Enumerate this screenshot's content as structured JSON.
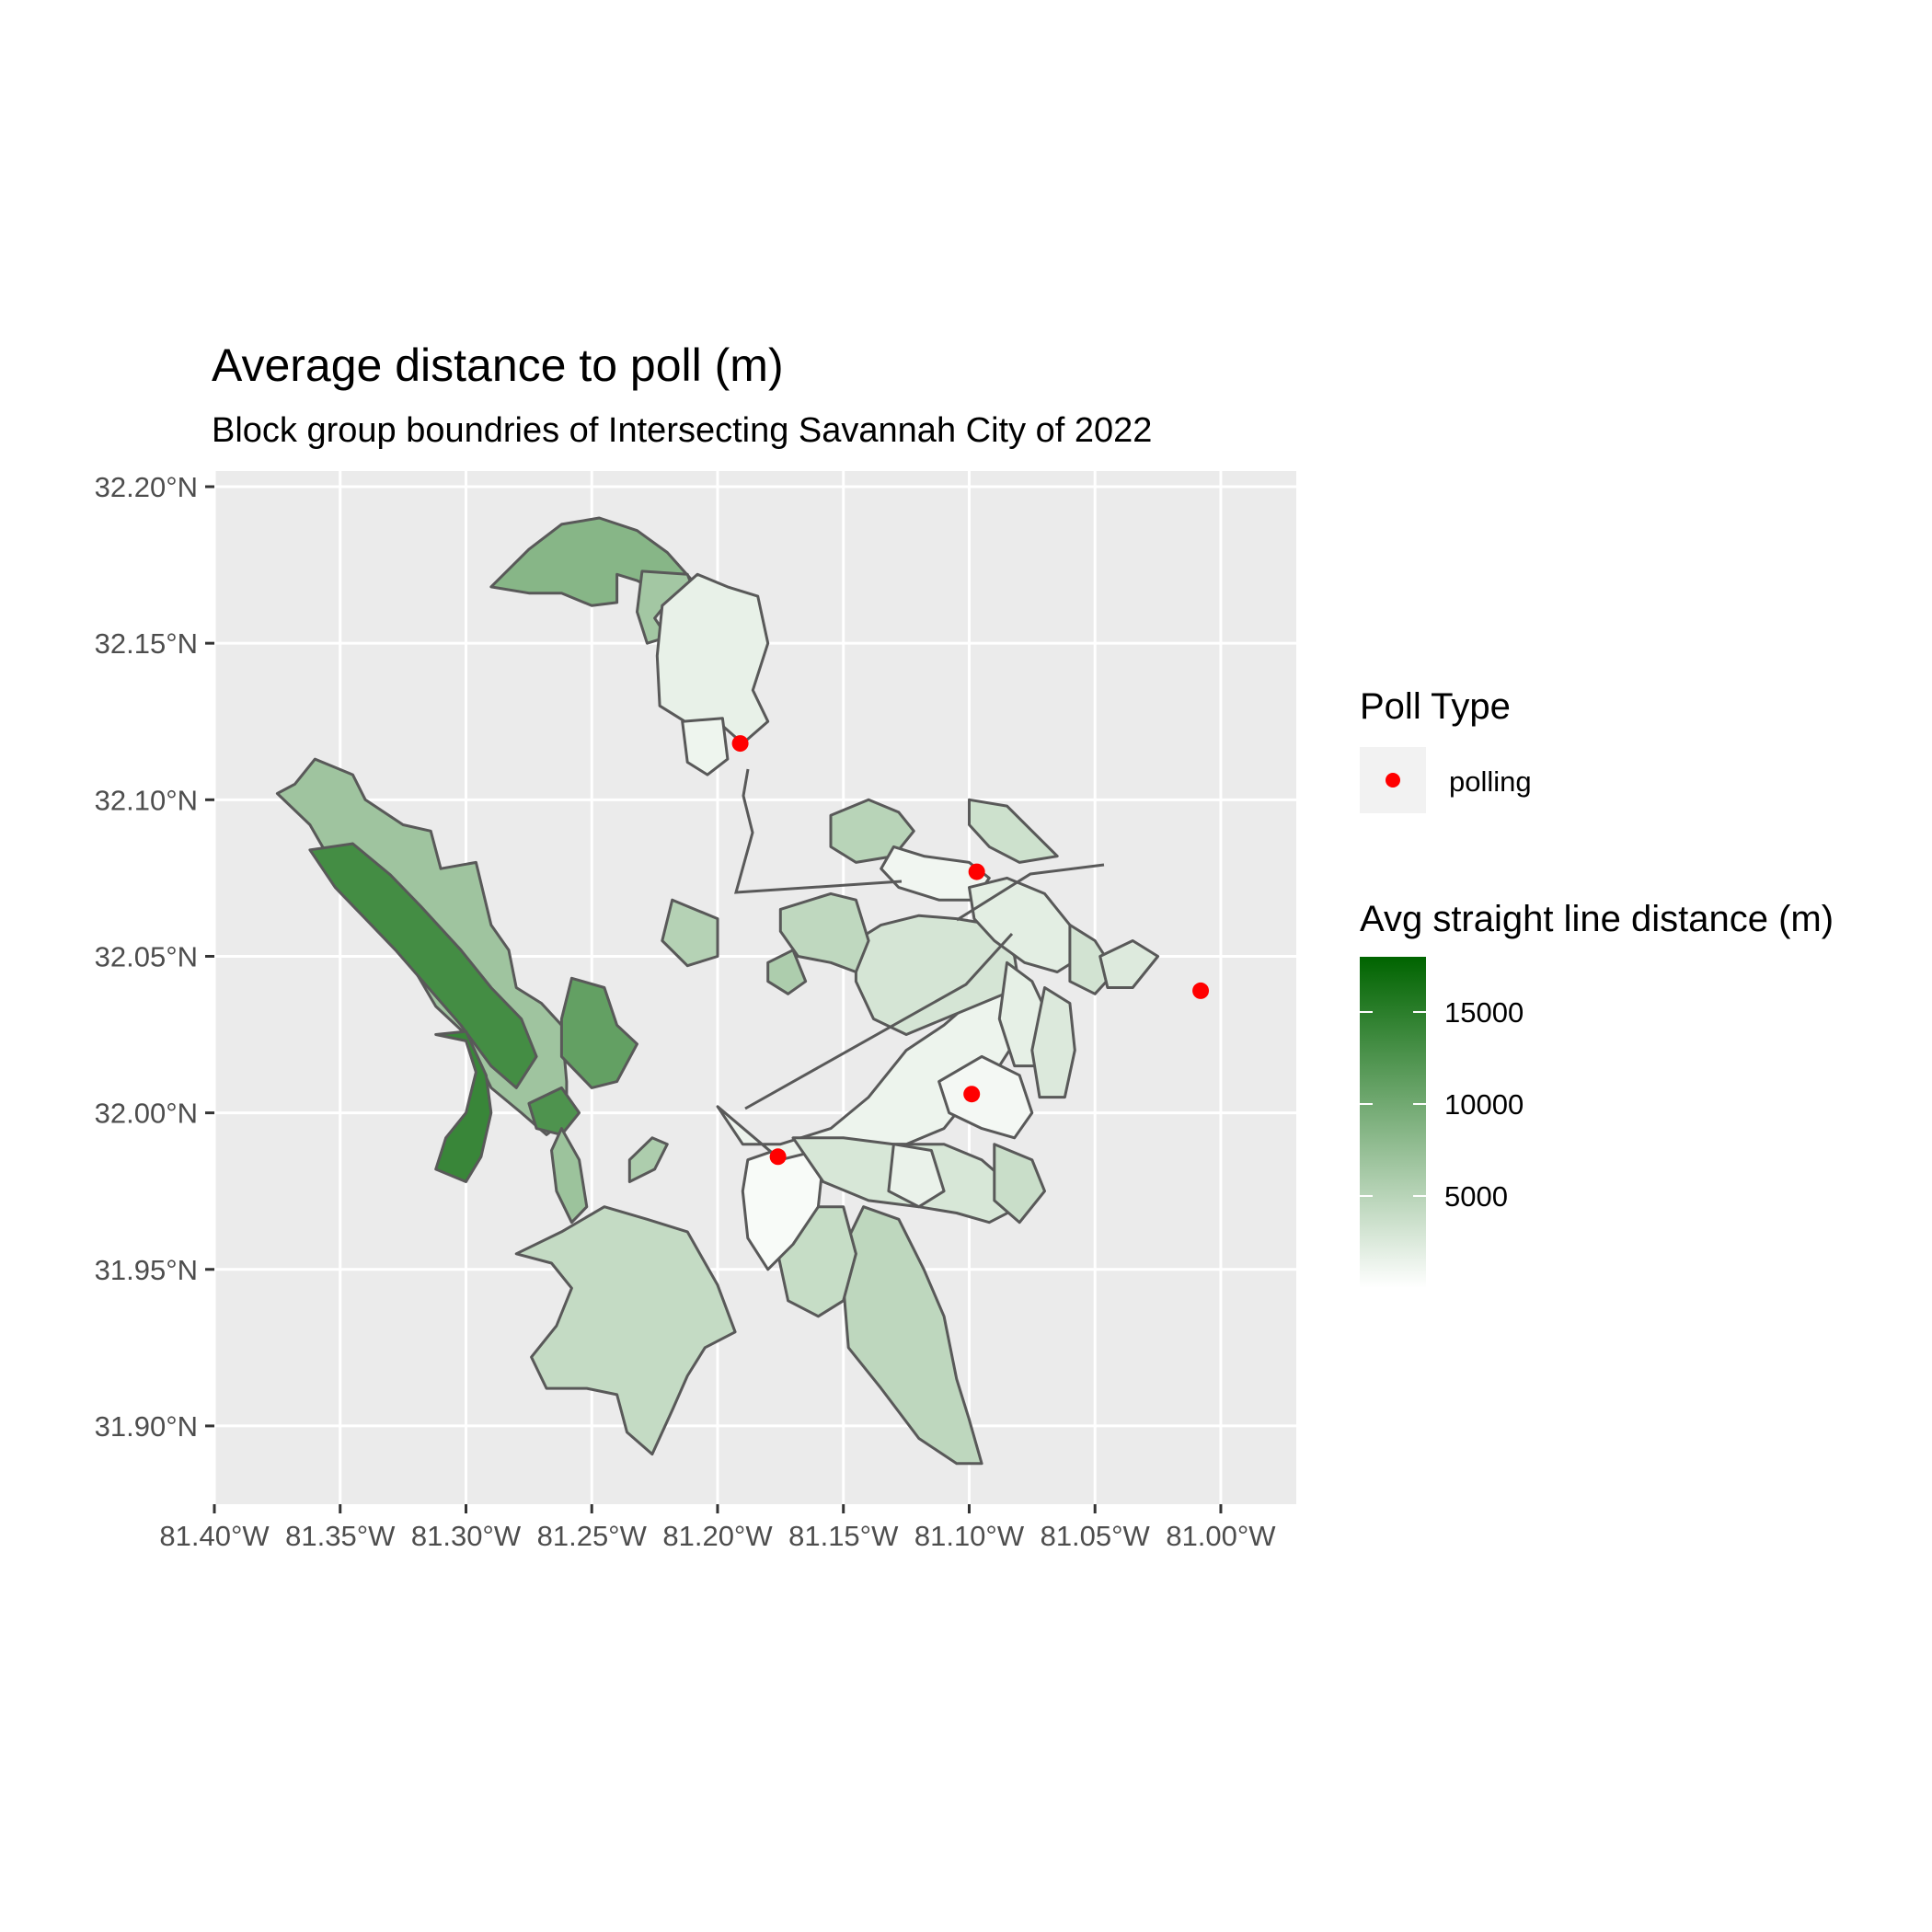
{
  "title": "Average distance to poll (m)",
  "subtitle": "Block group boundries of Intersecting Savannah City of 2022",
  "map": {
    "lon_range": [
      -81.4,
      -80.97
    ],
    "lat_range": [
      31.875,
      32.205
    ],
    "lon_ticks": [
      -81.4,
      -81.35,
      -81.3,
      -81.25,
      -81.2,
      -81.15,
      -81.1,
      -81.05,
      -81.0
    ],
    "lon_labels": [
      "81.40°W",
      "81.35°W",
      "81.30°W",
      "81.25°W",
      "81.20°W",
      "81.15°W",
      "81.10°W",
      "81.05°W",
      "81.00°W"
    ],
    "lat_ticks": [
      32.2,
      32.15,
      32.1,
      32.05,
      32.0,
      31.95,
      31.9
    ],
    "lat_labels": [
      "32.20°N",
      "32.15°N",
      "32.10°N",
      "32.05°N",
      "32.00°N",
      "31.95°N",
      "31.90°N"
    ],
    "panel_color": "#ebebeb",
    "grid_color": "#ffffff",
    "border_color": "#595959"
  },
  "colors": {
    "low": "#ffffff",
    "high": "#006400",
    "poll": "#ff0000"
  },
  "legend_poll": {
    "title": "Poll Type",
    "item": "polling"
  },
  "legend_distance": {
    "title": "Avg straight line distance (m)",
    "min": 0,
    "max": 18000,
    "breaks": [
      5000,
      10000,
      15000
    ],
    "labels": [
      "5000",
      "10000",
      "15000"
    ]
  },
  "polls": [
    {
      "lon": -81.191,
      "lat": 32.118
    },
    {
      "lon": -81.097,
      "lat": 32.077
    },
    {
      "lon": -81.099,
      "lat": 32.006
    },
    {
      "lon": -81.176,
      "lat": 31.986
    },
    {
      "lon": -81.008,
      "lat": 32.039
    }
  ],
  "regions": [
    {
      "value": 8500,
      "coords": [
        [
          -81.29,
          32.168
        ],
        [
          -81.275,
          32.18
        ],
        [
          -81.262,
          32.188
        ],
        [
          -81.247,
          32.19
        ],
        [
          -81.232,
          32.186
        ],
        [
          -81.22,
          32.179
        ],
        [
          -81.21,
          32.17
        ],
        [
          -81.22,
          32.165
        ],
        [
          -81.232,
          32.17
        ],
        [
          -81.24,
          32.172
        ],
        [
          -81.24,
          32.163
        ],
        [
          -81.25,
          32.162
        ],
        [
          -81.262,
          32.166
        ],
        [
          -81.275,
          32.166
        ]
      ]
    },
    {
      "value": 6500,
      "coords": [
        [
          -81.23,
          32.173
        ],
        [
          -81.212,
          32.172
        ],
        [
          -81.21,
          32.168
        ],
        [
          -81.22,
          32.163
        ],
        [
          -81.225,
          32.158
        ],
        [
          -81.22,
          32.152
        ],
        [
          -81.228,
          32.15
        ],
        [
          -81.232,
          32.16
        ]
      ]
    },
    {
      "value": 1600,
      "coords": [
        [
          -81.222,
          32.162
        ],
        [
          -81.208,
          32.172
        ],
        [
          -81.196,
          32.168
        ],
        [
          -81.184,
          32.165
        ],
        [
          -81.18,
          32.15
        ],
        [
          -81.186,
          32.135
        ],
        [
          -81.18,
          32.125
        ],
        [
          -81.19,
          32.118
        ],
        [
          -81.2,
          32.125
        ],
        [
          -81.213,
          32.125
        ],
        [
          -81.223,
          32.13
        ],
        [
          -81.224,
          32.146
        ]
      ]
    },
    {
      "value": 1200,
      "coords": [
        [
          -81.214,
          32.125
        ],
        [
          -81.198,
          32.126
        ],
        [
          -81.196,
          32.113
        ],
        [
          -81.204,
          32.108
        ],
        [
          -81.212,
          32.112
        ]
      ]
    },
    {
      "value": 6800,
      "coords": [
        [
          -81.368,
          32.105
        ],
        [
          -81.36,
          32.113
        ],
        [
          -81.345,
          32.108
        ],
        [
          -81.34,
          32.1
        ],
        [
          -81.325,
          32.092
        ],
        [
          -81.314,
          32.09
        ],
        [
          -81.31,
          32.078
        ],
        [
          -81.296,
          32.08
        ],
        [
          -81.29,
          32.06
        ],
        [
          -81.283,
          32.052
        ],
        [
          -81.28,
          32.04
        ],
        [
          -81.27,
          32.035
        ],
        [
          -81.262,
          32.028
        ],
        [
          -81.26,
          32.01
        ],
        [
          -81.26,
          31.998
        ],
        [
          -81.268,
          31.993
        ],
        [
          -81.278,
          32.0
        ],
        [
          -81.29,
          32.008
        ],
        [
          -81.3,
          32.025
        ],
        [
          -81.312,
          32.034
        ],
        [
          -81.32,
          32.045
        ],
        [
          -81.33,
          32.055
        ],
        [
          -81.34,
          32.066
        ],
        [
          -81.352,
          32.078
        ],
        [
          -81.362,
          32.092
        ],
        [
          -81.375,
          32.102
        ]
      ]
    },
    {
      "value": 13200,
      "coords": [
        [
          -81.362,
          32.084
        ],
        [
          -81.345,
          32.086
        ],
        [
          -81.33,
          32.076
        ],
        [
          -81.318,
          32.066
        ],
        [
          -81.302,
          32.052
        ],
        [
          -81.29,
          32.04
        ],
        [
          -81.278,
          32.03
        ],
        [
          -81.272,
          32.018
        ],
        [
          -81.28,
          32.008
        ],
        [
          -81.29,
          32.015
        ],
        [
          -81.302,
          32.028
        ],
        [
          -81.315,
          32.04
        ],
        [
          -81.328,
          32.052
        ],
        [
          -81.34,
          32.062
        ],
        [
          -81.352,
          32.072
        ]
      ]
    },
    {
      "value": 14000,
      "coords": [
        [
          -81.312,
          32.025
        ],
        [
          -81.3,
          32.023
        ],
        [
          -81.296,
          32.013
        ],
        [
          -81.3,
          32.0
        ],
        [
          -81.308,
          31.992
        ],
        [
          -81.312,
          31.982
        ],
        [
          -81.3,
          31.978
        ],
        [
          -81.294,
          31.986
        ],
        [
          -81.29,
          32.0
        ],
        [
          -81.292,
          32.012
        ],
        [
          -81.3,
          32.026
        ]
      ]
    },
    {
      "value": 11000,
      "coords": [
        [
          -81.258,
          32.043
        ],
        [
          -81.245,
          32.04
        ],
        [
          -81.24,
          32.028
        ],
        [
          -81.232,
          32.022
        ],
        [
          -81.24,
          32.01
        ],
        [
          -81.25,
          32.008
        ],
        [
          -81.262,
          32.018
        ],
        [
          -81.262,
          32.03
        ]
      ]
    },
    {
      "value": 12500,
      "coords": [
        [
          -81.275,
          32.003
        ],
        [
          -81.262,
          32.008
        ],
        [
          -81.255,
          32.0
        ],
        [
          -81.262,
          31.993
        ],
        [
          -81.272,
          31.995
        ]
      ]
    },
    {
      "value": 7000,
      "coords": [
        [
          -81.262,
          31.995
        ],
        [
          -81.255,
          31.985
        ],
        [
          -81.252,
          31.97
        ],
        [
          -81.258,
          31.965
        ],
        [
          -81.264,
          31.975
        ],
        [
          -81.266,
          31.988
        ]
      ]
    },
    {
      "value": 5800,
      "coords": [
        [
          -81.235,
          31.985
        ],
        [
          -81.226,
          31.992
        ],
        [
          -81.22,
          31.99
        ],
        [
          -81.225,
          31.982
        ],
        [
          -81.235,
          31.978
        ]
      ]
    },
    {
      "value": 5200,
      "coords": [
        [
          -81.218,
          32.068
        ],
        [
          -81.2,
          32.062
        ],
        [
          -81.2,
          32.05
        ],
        [
          -81.212,
          32.047
        ],
        [
          -81.222,
          32.055
        ]
      ]
    },
    {
      "value": 4200,
      "coords": [
        [
          -81.28,
          31.955
        ],
        [
          -81.262,
          31.962
        ],
        [
          -81.245,
          31.97
        ],
        [
          -81.228,
          31.966
        ],
        [
          -81.212,
          31.962
        ],
        [
          -81.2,
          31.945
        ],
        [
          -81.193,
          31.93
        ],
        [
          -81.205,
          31.925
        ],
        [
          -81.212,
          31.916
        ],
        [
          -81.218,
          31.905
        ],
        [
          -81.226,
          31.891
        ],
        [
          -81.236,
          31.898
        ],
        [
          -81.24,
          31.91
        ],
        [
          -81.252,
          31.912
        ],
        [
          -81.268,
          31.912
        ],
        [
          -81.274,
          31.922
        ],
        [
          -81.264,
          31.932
        ],
        [
          -81.258,
          31.944
        ],
        [
          -81.266,
          31.952
        ]
      ]
    },
    {
      "value": 4600,
      "coords": [
        [
          -81.142,
          31.97
        ],
        [
          -81.128,
          31.966
        ],
        [
          -81.118,
          31.95
        ],
        [
          -81.11,
          31.935
        ],
        [
          -81.105,
          31.915
        ],
        [
          -81.1,
          31.902
        ],
        [
          -81.095,
          31.888
        ],
        [
          -81.105,
          31.888
        ],
        [
          -81.12,
          31.896
        ],
        [
          -81.135,
          31.912
        ],
        [
          -81.148,
          31.925
        ],
        [
          -81.15,
          31.945
        ],
        [
          -81.148,
          31.96
        ]
      ]
    },
    {
      "value": 4000,
      "coords": [
        [
          -81.17,
          31.97
        ],
        [
          -81.15,
          31.97
        ],
        [
          -81.145,
          31.955
        ],
        [
          -81.15,
          31.94
        ],
        [
          -81.16,
          31.935
        ],
        [
          -81.172,
          31.94
        ],
        [
          -81.176,
          31.955
        ]
      ]
    },
    {
      "value": 500,
      "coords": [
        [
          -81.188,
          31.985
        ],
        [
          -81.17,
          31.99
        ],
        [
          -81.158,
          31.985
        ],
        [
          -81.16,
          31.97
        ],
        [
          -81.17,
          31.958
        ],
        [
          -81.18,
          31.95
        ],
        [
          -81.188,
          31.96
        ],
        [
          -81.19,
          31.975
        ]
      ]
    },
    {
      "value": 1300,
      "coords": [
        [
          -81.2,
          32.002
        ],
        [
          -81.19,
          31.99
        ],
        [
          -81.175,
          31.99
        ],
        [
          -81.155,
          31.995
        ],
        [
          -81.14,
          32.005
        ],
        [
          -81.125,
          32.02
        ],
        [
          -81.11,
          32.028
        ],
        [
          -81.1,
          32.035
        ],
        [
          -81.085,
          32.04
        ],
        [
          -81.08,
          32.025
        ],
        [
          -81.088,
          32.015
        ],
        [
          -81.1,
          32.005
        ],
        [
          -81.11,
          31.995
        ],
        [
          -81.125,
          31.99
        ],
        [
          -81.15,
          31.99
        ],
        [
          -81.175,
          31.985
        ]
      ]
    },
    {
      "value": 2800,
      "coords": [
        [
          -81.17,
          31.992
        ],
        [
          -81.15,
          31.992
        ],
        [
          -81.13,
          31.99
        ],
        [
          -81.11,
          31.99
        ],
        [
          -81.095,
          31.985
        ],
        [
          -81.085,
          31.978
        ],
        [
          -81.08,
          31.97
        ],
        [
          -81.092,
          31.965
        ],
        [
          -81.105,
          31.968
        ],
        [
          -81.12,
          31.97
        ],
        [
          -81.14,
          31.972
        ],
        [
          -81.158,
          31.978
        ]
      ]
    },
    {
      "value": 1500,
      "coords": [
        [
          -81.13,
          31.99
        ],
        [
          -81.115,
          31.988
        ],
        [
          -81.11,
          31.975
        ],
        [
          -81.12,
          31.97
        ],
        [
          -81.132,
          31.975
        ]
      ]
    },
    {
      "value": 800,
      "coords": [
        [
          -81.112,
          32.01
        ],
        [
          -81.095,
          32.018
        ],
        [
          -81.08,
          32.012
        ],
        [
          -81.075,
          32.0
        ],
        [
          -81.082,
          31.992
        ],
        [
          -81.095,
          31.995
        ],
        [
          -81.108,
          32.0
        ]
      ]
    },
    {
      "value": 3000,
      "coords": [
        [
          -81.145,
          32.055
        ],
        [
          -81.135,
          32.06
        ],
        [
          -81.12,
          32.063
        ],
        [
          -81.105,
          32.062
        ],
        [
          -81.09,
          32.06
        ],
        [
          -81.082,
          32.05
        ],
        [
          -81.08,
          32.04
        ],
        [
          -81.095,
          32.035
        ],
        [
          -81.11,
          32.03
        ],
        [
          -81.125,
          32.025
        ],
        [
          -81.138,
          32.03
        ],
        [
          -81.145,
          32.042
        ]
      ]
    },
    {
      "value": 4500,
      "coords": [
        [
          -81.175,
          32.065
        ],
        [
          -81.155,
          32.07
        ],
        [
          -81.145,
          32.068
        ],
        [
          -81.14,
          32.055
        ],
        [
          -81.145,
          32.045
        ],
        [
          -81.155,
          32.048
        ],
        [
          -81.168,
          32.05
        ],
        [
          -81.175,
          32.058
        ]
      ]
    },
    {
      "value": 5000,
      "coords": [
        [
          -81.155,
          32.095
        ],
        [
          -81.14,
          32.1
        ],
        [
          -81.128,
          32.096
        ],
        [
          -81.122,
          32.09
        ],
        [
          -81.13,
          32.082
        ],
        [
          -81.145,
          32.08
        ],
        [
          -81.155,
          32.085
        ]
      ]
    },
    {
      "value": 1000,
      "coords": [
        [
          -81.13,
          32.085
        ],
        [
          -81.118,
          32.082
        ],
        [
          -81.1,
          32.08
        ],
        [
          -81.092,
          32.075
        ],
        [
          -81.098,
          32.068
        ],
        [
          -81.112,
          32.068
        ],
        [
          -81.128,
          32.072
        ],
        [
          -81.135,
          32.078
        ]
      ]
    },
    {
      "value": 3500,
      "coords": [
        [
          -81.1,
          32.1
        ],
        [
          -81.085,
          32.098
        ],
        [
          -81.075,
          32.09
        ],
        [
          -81.065,
          32.082
        ],
        [
          -81.08,
          32.08
        ],
        [
          -81.092,
          32.085
        ],
        [
          -81.1,
          32.092
        ]
      ]
    },
    {
      "value": 2000,
      "coords": [
        [
          -81.1,
          32.072
        ],
        [
          -81.085,
          32.075
        ],
        [
          -81.07,
          32.07
        ],
        [
          -81.06,
          32.06
        ],
        [
          -81.055,
          32.05
        ],
        [
          -81.065,
          32.045
        ],
        [
          -81.078,
          32.048
        ],
        [
          -81.09,
          32.055
        ],
        [
          -81.098,
          32.062
        ]
      ]
    },
    {
      "value": 3200,
      "coords": [
        [
          -81.06,
          32.06
        ],
        [
          -81.05,
          32.055
        ],
        [
          -81.042,
          32.045
        ],
        [
          -81.05,
          32.038
        ],
        [
          -81.06,
          32.042
        ]
      ]
    },
    {
      "value": 2400,
      "coords": [
        [
          -81.048,
          32.05
        ],
        [
          -81.035,
          32.055
        ],
        [
          -81.025,
          32.05
        ],
        [
          -81.035,
          32.04
        ],
        [
          -81.045,
          32.04
        ]
      ]
    },
    {
      "value": 1800,
      "coords": [
        [
          -81.085,
          32.048
        ],
        [
          -81.075,
          32.042
        ],
        [
          -81.068,
          32.03
        ],
        [
          -81.07,
          32.015
        ],
        [
          -81.082,
          32.015
        ],
        [
          -81.088,
          32.03
        ]
      ]
    },
    {
      "value": 2500,
      "coords": [
        [
          -81.07,
          32.04
        ],
        [
          -81.06,
          32.035
        ],
        [
          -81.058,
          32.02
        ],
        [
          -81.062,
          32.005
        ],
        [
          -81.072,
          32.005
        ],
        [
          -81.075,
          32.02
        ]
      ]
    },
    {
      "value": 3800,
      "coords": [
        [
          -81.09,
          31.99
        ],
        [
          -81.075,
          31.985
        ],
        [
          -81.07,
          31.975
        ],
        [
          -81.08,
          31.965
        ],
        [
          -81.09,
          31.972
        ]
      ]
    },
    {
      "value": 5800,
      "coords": [
        [
          -81.18,
          32.048
        ],
        [
          -81.17,
          32.052
        ],
        [
          -81.165,
          32.042
        ],
        [
          -81.172,
          32.038
        ],
        [
          -81.18,
          32.042
        ]
      ]
    }
  ]
}
